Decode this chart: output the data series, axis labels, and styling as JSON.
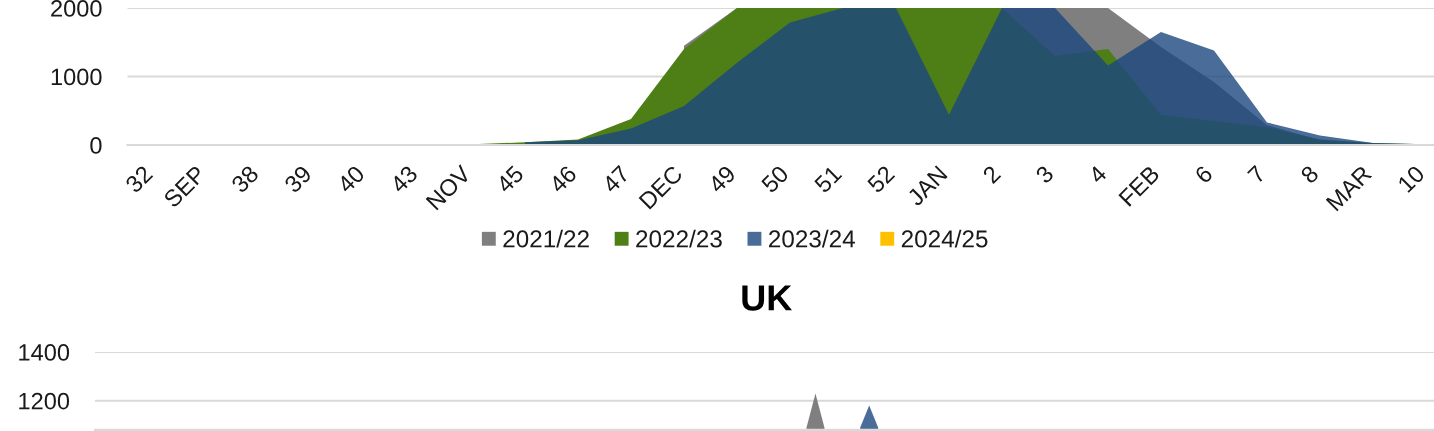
{
  "chart_data": [
    {
      "type": "area",
      "categories": [
        "32",
        "SEP",
        "38",
        "39",
        "40",
        "43",
        "NOV",
        "45",
        "46",
        "47",
        "DEC",
        "49",
        "50",
        "51",
        "52",
        "JAN",
        "2",
        "3",
        "4",
        "FEB",
        "6",
        "7",
        "8",
        "MAR",
        "10"
      ],
      "series": [
        {
          "name": "2021/22",
          "color": "#7f7f7f",
          "values": [
            null,
            null,
            null,
            null,
            null,
            null,
            null,
            null,
            null,
            null,
            1450,
            2000,
            null,
            null,
            null,
            null,
            2000,
            2000,
            2000,
            1430,
            920,
            290,
            70,
            20,
            10
          ]
        },
        {
          "name": "2022/23",
          "color": "#4e7f16",
          "values": [
            null,
            null,
            null,
            null,
            null,
            10,
            10,
            40,
            80,
            380,
            1400,
            2000,
            2000,
            2000,
            2000,
            2000,
            2000,
            1300,
            1400,
            440,
            350,
            260,
            80,
            30,
            10
          ]
        },
        {
          "name": "2023/24",
          "color": "#1c4780",
          "values": [
            null,
            null,
            null,
            null,
            null,
            null,
            null,
            40,
            70,
            240,
            570,
            1200,
            1790,
            2000,
            2000,
            440,
            2000,
            2000,
            1160,
            1650,
            1380,
            330,
            140,
            30,
            10
          ]
        },
        {
          "name": "2024/25",
          "color": "#ffc000",
          "values": [
            null,
            null,
            null,
            null,
            null,
            null,
            null,
            null,
            null,
            null,
            null,
            null,
            null,
            null,
            null,
            null,
            null,
            null,
            null,
            null,
            null,
            null,
            null,
            null,
            null
          ]
        }
      ],
      "ylim": [
        0,
        2000
      ],
      "yticks": [
        0,
        1000,
        2000
      ],
      "grid": "y",
      "legend": "bottom"
    },
    {
      "type": "area",
      "title": "UK",
      "categories": [
        null,
        null,
        null,
        null,
        null,
        null,
        null,
        null,
        null,
        null,
        null,
        null,
        null,
        null,
        null,
        null,
        null,
        null,
        null,
        null,
        null,
        null,
        null,
        null,
        null,
        null,
        null,
        null,
        null,
        null,
        null,
        null,
        null,
        null,
        null,
        null,
        null,
        null,
        null,
        null,
        null,
        null,
        null,
        null,
        null,
        null,
        null,
        null,
        null,
        null,
        null,
        null,
        null,
        null,
        null,
        null,
        null,
        null,
        null,
        null,
        null,
        null,
        null,
        null,
        null,
        null,
        null,
        null,
        null,
        null,
        null,
        null,
        null,
        null,
        null,
        null,
        null,
        null,
        null,
        null,
        null,
        null,
        null,
        null,
        null,
        null,
        null,
        null,
        null,
        null,
        null,
        null,
        null,
        null,
        null,
        null,
        null,
        null,
        null,
        null,
        null,
        null,
        null,
        null,
        null,
        null,
        null,
        null,
        null,
        null,
        null,
        null,
        null,
        null,
        null,
        null,
        null,
        null,
        null,
        null,
        null,
        null,
        null,
        null,
        null,
        null,
        null,
        null,
        null,
        null,
        null,
        null,
        null,
        null,
        null,
        null,
        null,
        null,
        null,
        null,
        null,
        null,
        null,
        null,
        null,
        null,
        null,
        null,
        null,
        null
      ],
      "series": [
        {
          "color": "#7f7f7f",
          "values": [
            null,
            null,
            null,
            null,
            null,
            null,
            null,
            null,
            null,
            null,
            null,
            null,
            null,
            null,
            null,
            null,
            null,
            null,
            null,
            null,
            null,
            null,
            null,
            null,
            null,
            null,
            null,
            null,
            null,
            null,
            null,
            null,
            null,
            null,
            null,
            null,
            null,
            null,
            null,
            null,
            null,
            null,
            null,
            null,
            null,
            null,
            null,
            null,
            null,
            null,
            null,
            null,
            null,
            null,
            null,
            null,
            null,
            null,
            null,
            null,
            null,
            null,
            null,
            null,
            null,
            null,
            null,
            null,
            null,
            null,
            null,
            null,
            null,
            null,
            null,
            null,
            null,
            null,
            null,
            1090,
            1230,
            1090,
            null,
            null,
            null,
            null,
            null,
            null,
            null,
            null,
            null,
            null,
            null,
            null,
            null,
            null,
            null,
            null,
            null,
            null,
            null,
            null,
            null,
            null,
            null,
            null,
            null,
            null,
            null,
            null,
            null,
            null,
            null,
            null,
            null,
            null,
            null,
            null,
            null,
            null,
            null,
            null,
            null,
            null,
            null,
            null,
            null,
            null,
            null,
            null,
            null,
            null,
            null,
            null,
            null,
            null,
            null,
            null,
            null,
            null,
            null,
            null,
            null,
            null,
            null,
            null,
            null,
            null,
            null,
            null
          ]
        },
        {
          "color": "#1c4780",
          "values": [
            null,
            null,
            null,
            null,
            null,
            null,
            null,
            null,
            null,
            null,
            null,
            null,
            null,
            null,
            null,
            null,
            null,
            null,
            null,
            null,
            null,
            null,
            null,
            null,
            null,
            null,
            null,
            null,
            null,
            null,
            null,
            null,
            null,
            null,
            null,
            null,
            null,
            null,
            null,
            null,
            null,
            null,
            null,
            null,
            null,
            null,
            null,
            null,
            null,
            null,
            null,
            null,
            null,
            null,
            null,
            null,
            null,
            null,
            null,
            null,
            null,
            null,
            null,
            null,
            null,
            null,
            null,
            null,
            null,
            null,
            null,
            null,
            null,
            null,
            null,
            null,
            null,
            null,
            null,
            null,
            null,
            null,
            null,
            null,
            null,
            1090,
            1180,
            1090,
            null,
            null,
            null,
            null,
            null,
            null,
            null,
            null,
            null,
            null,
            null,
            null,
            null,
            null,
            null,
            null,
            null,
            null,
            null,
            null,
            null,
            null,
            null,
            null,
            null,
            null,
            null,
            null,
            null,
            null,
            null,
            null,
            null,
            null,
            null,
            null,
            null,
            null,
            null,
            null,
            null,
            null,
            null,
            null,
            null,
            null,
            null,
            null,
            null,
            null,
            null,
            null,
            null,
            null,
            null,
            null,
            null,
            null,
            null,
            null,
            null,
            null
          ]
        }
      ],
      "ylim": [
        1080,
        1400
      ],
      "yticks": [
        1200,
        1400
      ],
      "grid": "y",
      "tick_labels": "y"
    }
  ]
}
